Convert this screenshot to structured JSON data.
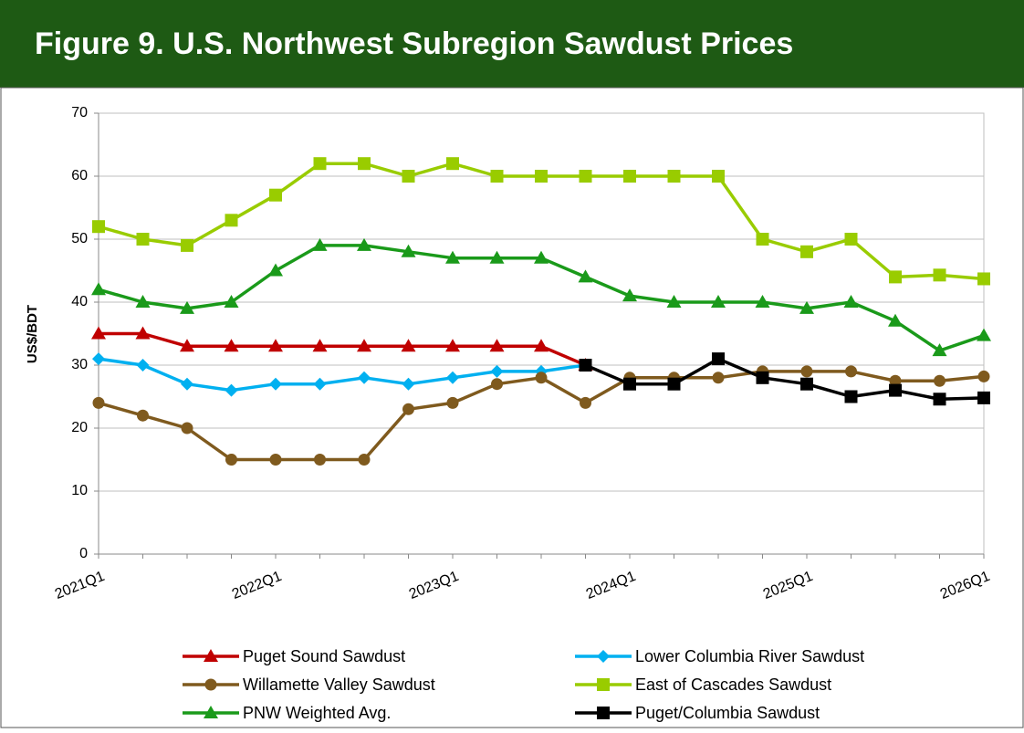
{
  "chart_data": {
    "type": "line",
    "title": "Figure 9. U.S. Northwest Subregion Sawdust Prices",
    "y_label": "US$/BDT",
    "categories": [
      "2021Q1",
      null,
      null,
      null,
      "2022Q1",
      null,
      null,
      null,
      "2023Q1",
      null,
      null,
      null,
      "2024Q1",
      null,
      null,
      null,
      "2025Q1",
      null,
      null,
      null,
      "2026Q1"
    ],
    "ylim": [
      0,
      70
    ],
    "yticks": [
      0,
      10,
      20,
      30,
      40,
      50,
      60,
      70
    ],
    "grid": true,
    "legend": "bottom",
    "series": [
      {
        "name": "Puget Sound Sawdust",
        "color": "#c00000",
        "marker": "triangle",
        "values": [
          35,
          35,
          33,
          33,
          33,
          33,
          33,
          33,
          33,
          33,
          33,
          30,
          null,
          null,
          null,
          null,
          null,
          null,
          null,
          null,
          null
        ]
      },
      {
        "name": "Lower Columbia River Sawdust",
        "color": "#00b0f0",
        "marker": "diamond",
        "values": [
          31,
          30,
          27,
          26,
          27,
          27,
          28,
          27,
          28,
          29,
          29,
          30,
          null,
          null,
          null,
          null,
          null,
          null,
          null,
          null,
          null
        ]
      },
      {
        "name": "Willamette Valley Sawdust",
        "color": "#7f5a1e",
        "marker": "circle",
        "values": [
          24,
          22,
          20,
          15,
          15,
          15,
          15,
          23,
          24,
          27,
          28,
          24,
          28,
          28,
          28,
          29,
          29,
          29,
          27.5,
          27.5,
          28.2
        ]
      },
      {
        "name": "East of Cascades Sawdust",
        "color": "#99cc00",
        "marker": "square",
        "values": [
          52,
          50,
          49,
          53,
          57,
          62,
          62,
          60,
          62,
          60,
          60,
          60,
          60,
          60,
          60,
          50,
          48,
          50,
          44,
          44.3,
          43.7
        ]
      },
      {
        "name": "PNW Weighted Avg.",
        "color": "#1a9a1a",
        "marker": "triangle",
        "values": [
          42,
          40,
          39,
          40,
          45,
          49,
          49,
          48,
          47,
          47,
          47,
          44,
          41,
          40,
          40,
          40,
          39,
          40,
          37,
          32.3,
          34.7
        ]
      },
      {
        "name": "Puget/Columbia Sawdust",
        "color": "#000000",
        "marker": "square",
        "values": [
          null,
          null,
          null,
          null,
          null,
          null,
          null,
          null,
          null,
          null,
          null,
          30,
          27,
          27,
          31,
          28,
          27,
          25,
          26,
          24.6,
          24.8
        ]
      }
    ]
  }
}
